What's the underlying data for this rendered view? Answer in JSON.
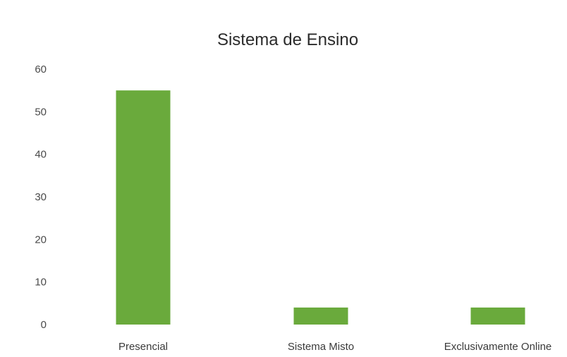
{
  "chart_data": {
    "type": "bar",
    "title": "Sistema de Ensino",
    "categories": [
      "Presencial",
      "Sistema Misto",
      "Exclusivamente Online"
    ],
    "values": [
      55,
      4,
      4
    ],
    "ylim": [
      0,
      60
    ],
    "yticks": [
      "0",
      "10",
      "20",
      "30",
      "40",
      "50",
      "60"
    ],
    "xlabel": "",
    "ylabel": "",
    "grid": false,
    "legend": "none",
    "bar_color": "#6aaa3c"
  }
}
